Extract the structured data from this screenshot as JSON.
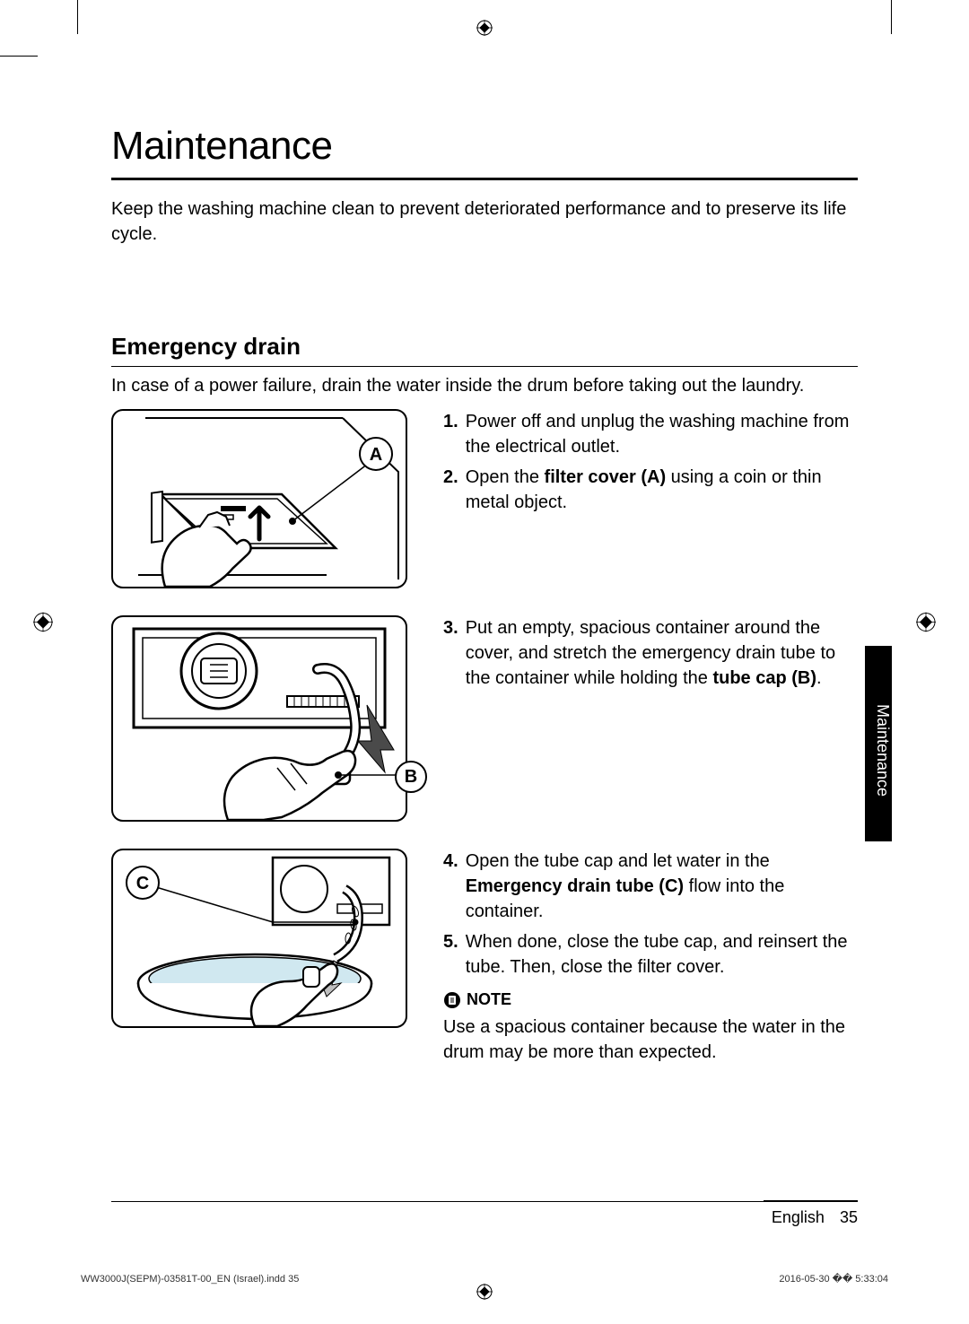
{
  "title": "Maintenance",
  "intro": "Keep the washing machine clean to prevent deteriorated performance and to preserve its life cycle.",
  "section": {
    "heading": "Emergency drain",
    "intro": "In case of a power failure, drain the water inside the drum before taking out the laundry.",
    "blocks": [
      {
        "figure_label": "A",
        "steps": [
          {
            "num": "1.",
            "before": "Power off and unplug the washing machine from the electrical outlet."
          },
          {
            "num": "2.",
            "before": "Open the ",
            "bold": "filter cover (A)",
            "after": " using a coin or thin metal object."
          }
        ]
      },
      {
        "figure_label": "B",
        "steps": [
          {
            "num": "3.",
            "before": "Put an empty, spacious container around the cover, and stretch the emergency drain tube to the container while holding the ",
            "bold": "tube cap (B)",
            "after": "."
          }
        ]
      },
      {
        "figure_label": "C",
        "steps": [
          {
            "num": "4.",
            "before": "Open the tube cap and let water in the ",
            "bold": "Emergency drain tube (C)",
            "after": " flow into the container."
          },
          {
            "num": "5.",
            "before": "When done, close the tube cap, and reinsert the tube. Then, close the filter cover."
          }
        ],
        "note": {
          "label": "NOTE",
          "text": "Use a spacious container because the water in the drum may be more than expected."
        }
      }
    ]
  },
  "side_tab": "Maintenance",
  "footer": {
    "language": "English",
    "page_number": "35",
    "file": "WW3000J(SEPM)-03581T-00_EN (Israel).indd   35",
    "date": "2016-05-30   �� 5:33:04"
  },
  "colors": {
    "text": "#000000",
    "background": "#ffffff",
    "tab_bg": "#000000",
    "tab_text": "#ffffff",
    "water": "#d0e8f0"
  }
}
